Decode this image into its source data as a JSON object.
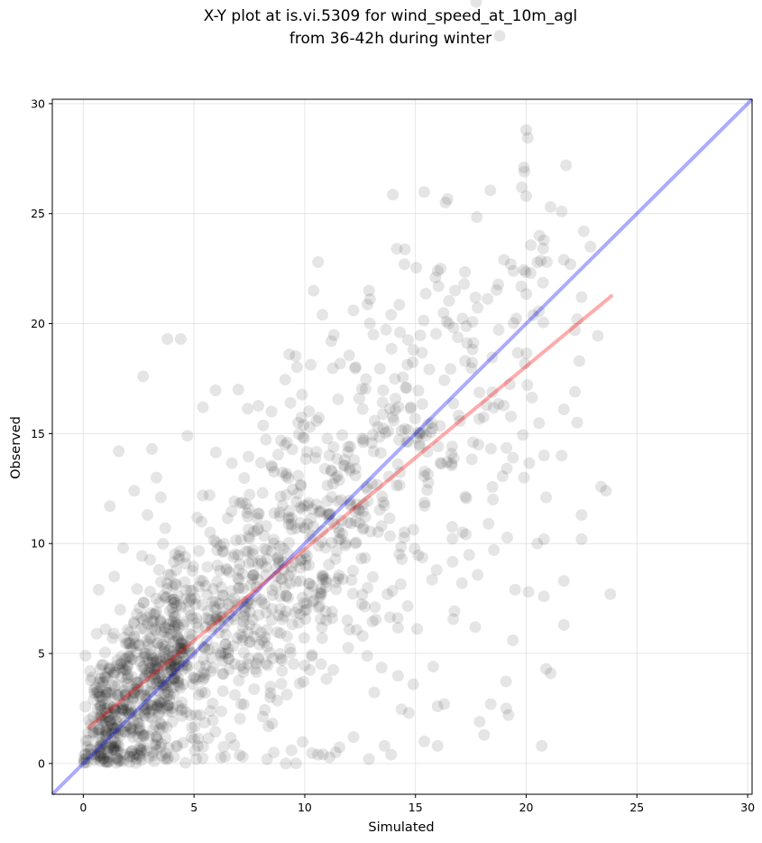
{
  "chart_data": {
    "type": "scatter",
    "title_line1": "X-Y plot at is.vi.5309 for wind_speed_at_10m_agl",
    "title_line2": "from 36-42h during winter",
    "xlabel": "Simulated",
    "ylabel": "Observed",
    "xlim": [
      -1.4,
      30.2
    ],
    "ylim": [
      -1.4,
      30.2
    ],
    "xticks": [
      0,
      5,
      10,
      15,
      20,
      25,
      30
    ],
    "yticks": [
      0,
      5,
      10,
      15,
      20,
      25,
      30
    ],
    "grid": true,
    "point_color": "#000000",
    "point_alpha": 0.1,
    "sample_points": [
      [
        0.1,
        4.9
      ],
      [
        0.3,
        4.2
      ],
      [
        0.5,
        3.2
      ],
      [
        0.6,
        5.9
      ],
      [
        0.7,
        7.9
      ],
      [
        1.0,
        6.1
      ],
      [
        1.2,
        11.7
      ],
      [
        1.4,
        8.5
      ],
      [
        1.6,
        14.2
      ],
      [
        1.8,
        9.8
      ],
      [
        2.3,
        12.4
      ],
      [
        2.7,
        17.6
      ],
      [
        2.9,
        11.3
      ],
      [
        3.1,
        14.3
      ],
      [
        3.3,
        13.0
      ],
      [
        3.5,
        12.1
      ],
      [
        3.8,
        19.3
      ],
      [
        4.4,
        19.3
      ],
      [
        4.7,
        14.9
      ],
      [
        5.4,
        16.2
      ],
      [
        5.7,
        12.2
      ],
      [
        7.0,
        17.0
      ],
      [
        8.5,
        16.0
      ],
      [
        9.3,
        18.6
      ],
      [
        10.4,
        21.5
      ],
      [
        10.6,
        22.8
      ],
      [
        10.8,
        20.4
      ],
      [
        11.2,
        19.2
      ],
      [
        12.2,
        20.6
      ],
      [
        12.9,
        21.5
      ],
      [
        13.1,
        19.5
      ],
      [
        13.9,
        20.4
      ],
      [
        14.3,
        19.6
      ],
      [
        14.5,
        22.7
      ],
      [
        15.9,
        22.1
      ],
      [
        16.0,
        22.4
      ],
      [
        17.2,
        21.8
      ],
      [
        16.5,
        20.0
      ],
      [
        19.0,
        22.9
      ],
      [
        19.3,
        22.7
      ],
      [
        19.8,
        26.2
      ],
      [
        20.0,
        28.8
      ],
      [
        19.9,
        27.1
      ],
      [
        20.0,
        25.8
      ],
      [
        20.2,
        22.3
      ],
      [
        20.6,
        24.0
      ],
      [
        20.8,
        23.8
      ],
      [
        21.1,
        25.3
      ],
      [
        21.6,
        25.1
      ],
      [
        21.7,
        22.9
      ],
      [
        21.8,
        27.2
      ],
      [
        22.0,
        22.7
      ],
      [
        22.6,
        24.2
      ],
      [
        22.9,
        23.5
      ],
      [
        22.5,
        21.2
      ],
      [
        22.3,
        20.2
      ],
      [
        22.2,
        19.7
      ],
      [
        22.4,
        18.3
      ],
      [
        22.2,
        16.9
      ],
      [
        22.3,
        15.5
      ],
      [
        21.7,
        16.1
      ],
      [
        21.6,
        14.0
      ],
      [
        23.6,
        12.4
      ],
      [
        22.5,
        11.3
      ],
      [
        22.5,
        10.2
      ],
      [
        23.8,
        7.7
      ],
      [
        21.7,
        8.3
      ],
      [
        21.7,
        6.3
      ],
      [
        20.9,
        12.1
      ],
      [
        20.8,
        10.2
      ],
      [
        20.5,
        10.0
      ],
      [
        20.8,
        7.6
      ],
      [
        20.1,
        7.8
      ],
      [
        19.5,
        7.9
      ],
      [
        19.4,
        5.6
      ],
      [
        20.9,
        4.3
      ],
      [
        21.1,
        4.1
      ],
      [
        20.7,
        0.8
      ],
      [
        19.1,
        2.5
      ],
      [
        19.2,
        2.2
      ],
      [
        18.4,
        2.7
      ],
      [
        17.9,
        1.9
      ],
      [
        18.1,
        1.3
      ],
      [
        17.7,
        6.2
      ],
      [
        17.1,
        8.2
      ],
      [
        18.3,
        10.9
      ],
      [
        18.5,
        12.0
      ],
      [
        19.4,
        13.9
      ],
      [
        19.9,
        13.0
      ],
      [
        16.0,
        0.8
      ],
      [
        15.4,
        1.0
      ],
      [
        16.0,
        2.6
      ],
      [
        16.3,
        2.7
      ],
      [
        15.8,
        4.4
      ],
      [
        14.9,
        3.6
      ],
      [
        14.7,
        2.3
      ],
      [
        13.6,
        0.8
      ],
      [
        12.9,
        0.2
      ],
      [
        13.9,
        0.4
      ],
      [
        12.2,
        1.2
      ],
      [
        11.4,
        0.5
      ],
      [
        10.6,
        0.4
      ],
      [
        9.4,
        0.6
      ],
      [
        8.6,
        0.5
      ],
      [
        7.2,
        0.3
      ],
      [
        6.4,
        0.3
      ],
      [
        5.1,
        0.2
      ],
      [
        4.1,
        0.3
      ],
      [
        3.2,
        0.1
      ],
      [
        2.4,
        0.2
      ],
      [
        1.6,
        0.1
      ],
      [
        0.9,
        0.2
      ]
    ]
  }
}
